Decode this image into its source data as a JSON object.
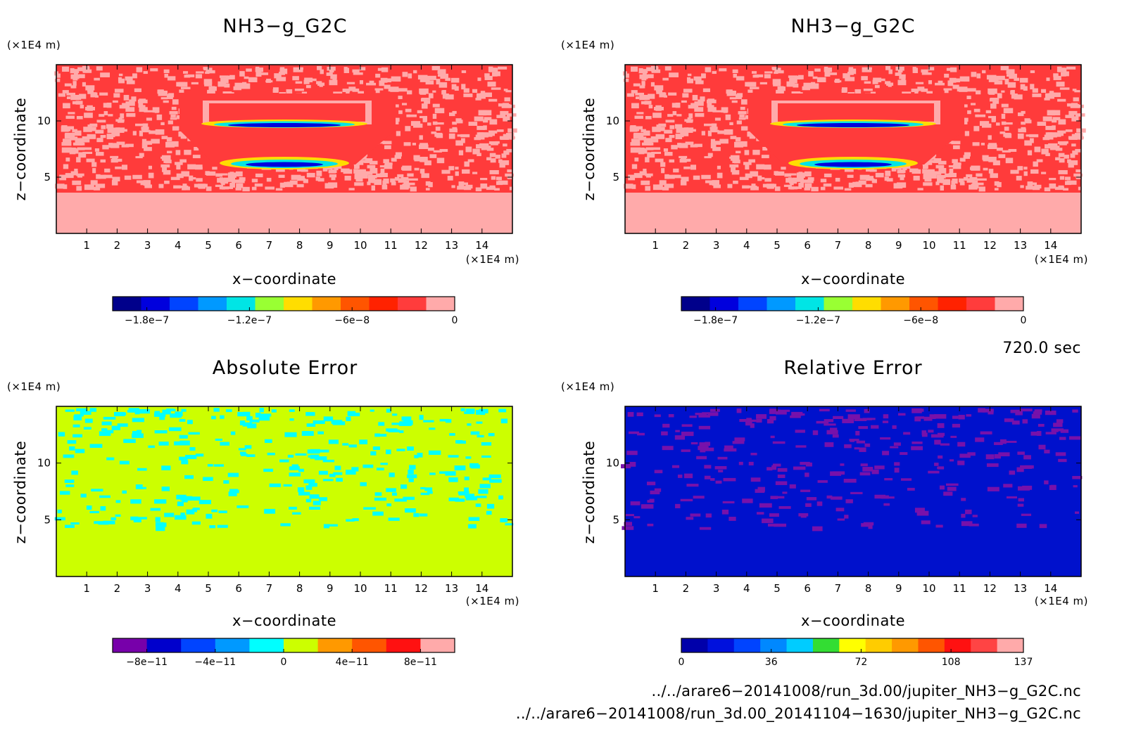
{
  "chart_data": [
    {
      "type": "heatmap",
      "title": "NH3−g_G2C",
      "xlabel": "x−coordinate",
      "ylabel": "z−coordinate",
      "x_unit": "(×1E4 m)",
      "y_unit": "(×1E4 m)",
      "x_ticks": [
        "1",
        "2",
        "3",
        "4",
        "5",
        "6",
        "7",
        "8",
        "9",
        "10",
        "11",
        "12",
        "13",
        "14"
      ],
      "y_ticks": [
        "5",
        "10"
      ],
      "xlim": [
        0,
        15
      ],
      "ylim": [
        0,
        15
      ],
      "colorbar": {
        "tick_labels": [
          "−1.8e−7",
          "−1.2e−7",
          "−6e−8",
          "0"
        ],
        "tick_values": [
          -1.8e-07,
          -1.2e-07,
          -6e-08,
          0
        ],
        "range": [
          -2e-07,
          0
        ],
        "colors": [
          "#00008b",
          "#0000dd",
          "#0044ff",
          "#0099ff",
          "#00e5e5",
          "#99ff33",
          "#ffdd00",
          "#ff9900",
          "#ff5500",
          "#ff2200",
          "#ff3c3c",
          "#ffaaaa"
        ]
      }
    },
    {
      "type": "heatmap",
      "title": "NH3−g_G2C",
      "xlabel": "x−coordinate",
      "ylabel": "z−coordinate",
      "x_unit": "(×1E4 m)",
      "y_unit": "(×1E4 m)",
      "x_ticks": [
        "1",
        "2",
        "3",
        "4",
        "5",
        "6",
        "7",
        "8",
        "9",
        "10",
        "11",
        "12",
        "13",
        "14"
      ],
      "y_ticks": [
        "5",
        "10"
      ],
      "xlim": [
        0,
        15
      ],
      "ylim": [
        0,
        15
      ],
      "colorbar": {
        "tick_labels": [
          "−1.8e−7",
          "−1.2e−7",
          "−6e−8",
          "0"
        ],
        "tick_values": [
          -1.8e-07,
          -1.2e-07,
          -6e-08,
          0
        ],
        "range": [
          -2e-07,
          0
        ],
        "colors": [
          "#00008b",
          "#0000dd",
          "#0044ff",
          "#0099ff",
          "#00e5e5",
          "#99ff33",
          "#ffdd00",
          "#ff9900",
          "#ff5500",
          "#ff2200",
          "#ff3c3c",
          "#ffaaaa"
        ]
      }
    },
    {
      "type": "heatmap",
      "title": "Absolute Error",
      "xlabel": "x−coordinate",
      "ylabel": "z−coordinate",
      "x_unit": "(×1E4 m)",
      "y_unit": "(×1E4 m)",
      "x_ticks": [
        "1",
        "2",
        "3",
        "4",
        "5",
        "6",
        "7",
        "8",
        "9",
        "10",
        "11",
        "12",
        "13",
        "14"
      ],
      "y_ticks": [
        "5",
        "10"
      ],
      "xlim": [
        0,
        15
      ],
      "ylim": [
        0,
        15
      ],
      "colorbar": {
        "tick_labels": [
          "−8e−11",
          "−4e−11",
          "0",
          "4e−11",
          "8e−11"
        ],
        "tick_values": [
          -8e-11,
          -4e-11,
          0,
          4e-11,
          8e-11
        ],
        "range": [
          -1e-10,
          1e-10
        ],
        "colors": [
          "#7700aa",
          "#0000cc",
          "#0044ff",
          "#0099ff",
          "#00ffff",
          "#ccff00",
          "#ff9900",
          "#ff5500",
          "#ff1111",
          "#ffaaaa"
        ]
      }
    },
    {
      "type": "heatmap",
      "title": "Relative Error",
      "xlabel": "x−coordinate",
      "ylabel": "z−coordinate",
      "x_unit": "(×1E4 m)",
      "y_unit": "(×1E4 m)",
      "x_ticks": [
        "1",
        "2",
        "3",
        "4",
        "5",
        "6",
        "7",
        "8",
        "9",
        "10",
        "11",
        "12",
        "13",
        "14"
      ],
      "y_ticks": [
        "5",
        "10"
      ],
      "xlim": [
        0,
        15
      ],
      "ylim": [
        0,
        15
      ],
      "colorbar": {
        "tick_labels": [
          "0",
          "36",
          "72",
          "108",
          "137"
        ],
        "tick_values": [
          0,
          36,
          72,
          108,
          137
        ],
        "range": [
          0,
          137
        ],
        "colors": [
          "#0000aa",
          "#0011dd",
          "#0044ff",
          "#0088ff",
          "#00ccff",
          "#33dd33",
          "#ffff00",
          "#ffcc00",
          "#ff9900",
          "#ff5500",
          "#ff1111",
          "#ff4444",
          "#ffaaaa"
        ]
      }
    }
  ],
  "time_label": "720.0 sec",
  "file_paths": [
    "../../arare6−20141008/run_3d.00/jupiter_NH3−g_G2C.nc",
    "../../arare6−20141008/run_3d.00_20141104−1630/jupiter_NH3−g_G2C.nc"
  ]
}
